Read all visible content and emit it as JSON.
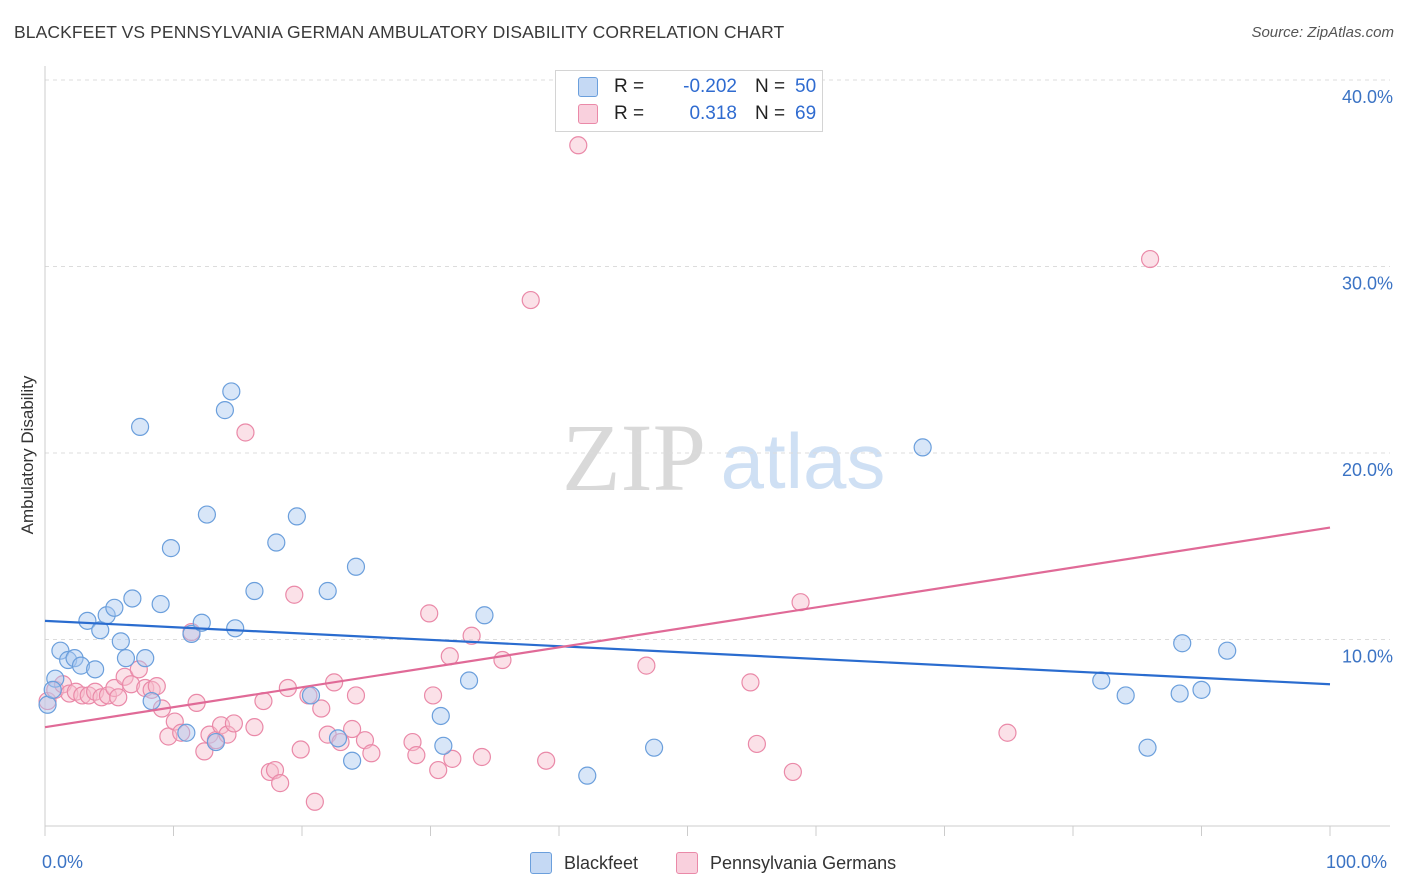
{
  "title": "BLACKFEET VS PENNSYLVANIA GERMAN AMBULATORY DISABILITY CORRELATION CHART",
  "source": "Source: ZipAtlas.com",
  "watermark": {
    "zip": "ZIP",
    "atlas": "atlas"
  },
  "colors": {
    "blue_fill": "#a9c8f0",
    "blue_stroke": "#6b9fdc",
    "blue_line": "#2a6ccf",
    "pink_fill": "#f6bccd",
    "pink_stroke": "#ea89a8",
    "pink_line": "#e06a97",
    "axis_label": "#3b73c4"
  },
  "legend": {
    "r_label": "R =",
    "n_label": "N =",
    "blue": {
      "r": "-0.202",
      "n": "50"
    },
    "pink": {
      "r": "0.318",
      "n": "69"
    }
  },
  "chart_data": {
    "type": "scatter",
    "ylabel": "Ambulatory Disability",
    "xlim": [
      0,
      100
    ],
    "ylim": [
      0,
      40
    ],
    "x_tick_labels": [
      "0.0%",
      "100.0%"
    ],
    "y_tick_labels": [
      "10.0%",
      "20.0%",
      "30.0%",
      "40.0%"
    ],
    "y_ticks": [
      10,
      20,
      30,
      40
    ],
    "grid": true,
    "legend_position": "top-center",
    "series": [
      {
        "name": "Blackfeet",
        "color": "blue",
        "trend": [
          [
            0,
            11.0
          ],
          [
            100,
            7.6
          ]
        ],
        "points": [
          [
            0.2,
            6.5
          ],
          [
            0.8,
            7.9
          ],
          [
            1.2,
            9.4
          ],
          [
            1.8,
            8.9
          ],
          [
            2.3,
            9.0
          ],
          [
            2.8,
            8.6
          ],
          [
            3.3,
            11.0
          ],
          [
            3.9,
            8.4
          ],
          [
            4.3,
            10.5
          ],
          [
            4.8,
            11.3
          ],
          [
            5.4,
            11.7
          ],
          [
            5.9,
            9.9
          ],
          [
            6.3,
            9.0
          ],
          [
            6.8,
            12.2
          ],
          [
            7.4,
            21.4
          ],
          [
            7.8,
            9.0
          ],
          [
            8.3,
            6.7
          ],
          [
            9.0,
            11.9
          ],
          [
            9.8,
            14.9
          ],
          [
            11.0,
            5.0
          ],
          [
            11.4,
            10.3
          ],
          [
            12.2,
            10.9
          ],
          [
            12.6,
            16.7
          ],
          [
            13.3,
            4.5
          ],
          [
            14.0,
            22.3
          ],
          [
            14.5,
            23.3
          ],
          [
            14.8,
            10.6
          ],
          [
            16.3,
            12.6
          ],
          [
            18.0,
            15.2
          ],
          [
            19.6,
            16.6
          ],
          [
            20.7,
            7.0
          ],
          [
            22.0,
            12.6
          ],
          [
            22.8,
            4.7
          ],
          [
            23.9,
            3.5
          ],
          [
            24.2,
            13.9
          ],
          [
            30.8,
            5.9
          ],
          [
            31.0,
            4.3
          ],
          [
            33.0,
            7.8
          ],
          [
            34.2,
            11.3
          ],
          [
            42.2,
            2.7
          ],
          [
            47.4,
            4.2
          ],
          [
            68.3,
            20.3
          ],
          [
            82.2,
            7.8
          ],
          [
            84.1,
            7.0
          ],
          [
            85.8,
            4.2
          ],
          [
            88.3,
            7.1
          ],
          [
            88.5,
            9.8
          ],
          [
            90.0,
            7.3
          ],
          [
            92.0,
            9.4
          ],
          [
            0.6,
            7.3
          ]
        ]
      },
      {
        "name": "Pennsylvania Germans",
        "color": "pink",
        "trend": [
          [
            0,
            5.3
          ],
          [
            100,
            16.0
          ]
        ],
        "points": [
          [
            0.2,
            6.7
          ],
          [
            0.8,
            7.3
          ],
          [
            1.4,
            7.6
          ],
          [
            1.9,
            7.1
          ],
          [
            2.4,
            7.2
          ],
          [
            2.9,
            7.0
          ],
          [
            3.4,
            7.0
          ],
          [
            3.9,
            7.2
          ],
          [
            4.4,
            6.9
          ],
          [
            4.9,
            7.0
          ],
          [
            5.4,
            7.4
          ],
          [
            5.7,
            6.9
          ],
          [
            6.2,
            8.0
          ],
          [
            6.7,
            7.6
          ],
          [
            7.3,
            8.4
          ],
          [
            7.8,
            7.4
          ],
          [
            8.3,
            7.3
          ],
          [
            8.7,
            7.5
          ],
          [
            9.1,
            6.3
          ],
          [
            9.6,
            4.8
          ],
          [
            10.1,
            5.6
          ],
          [
            10.6,
            5.0
          ],
          [
            11.4,
            10.4
          ],
          [
            11.8,
            6.6
          ],
          [
            12.4,
            4.0
          ],
          [
            12.8,
            4.9
          ],
          [
            13.3,
            4.6
          ],
          [
            13.7,
            5.4
          ],
          [
            14.2,
            4.9
          ],
          [
            14.7,
            5.5
          ],
          [
            15.6,
            21.1
          ],
          [
            16.3,
            5.3
          ],
          [
            17.0,
            6.7
          ],
          [
            17.5,
            2.9
          ],
          [
            17.9,
            3.0
          ],
          [
            18.3,
            2.3
          ],
          [
            18.9,
            7.4
          ],
          [
            19.4,
            12.4
          ],
          [
            19.9,
            4.1
          ],
          [
            20.5,
            7.0
          ],
          [
            21.0,
            1.3
          ],
          [
            21.5,
            6.3
          ],
          [
            22.0,
            4.9
          ],
          [
            22.5,
            7.7
          ],
          [
            23.0,
            4.5
          ],
          [
            23.9,
            5.2
          ],
          [
            24.2,
            7.0
          ],
          [
            24.9,
            4.6
          ],
          [
            25.4,
            3.9
          ],
          [
            28.6,
            4.5
          ],
          [
            28.9,
            3.8
          ],
          [
            29.9,
            11.4
          ],
          [
            30.6,
            3.0
          ],
          [
            30.2,
            7.0
          ],
          [
            31.5,
            9.1
          ],
          [
            31.7,
            3.6
          ],
          [
            33.2,
            10.2
          ],
          [
            34.0,
            3.7
          ],
          [
            35.6,
            8.9
          ],
          [
            37.8,
            28.2
          ],
          [
            39.0,
            3.5
          ],
          [
            41.5,
            36.5
          ],
          [
            46.8,
            8.6
          ],
          [
            54.9,
            7.7
          ],
          [
            55.4,
            4.4
          ],
          [
            58.2,
            2.9
          ],
          [
            58.8,
            12.0
          ],
          [
            74.9,
            5.0
          ],
          [
            86.0,
            30.4
          ]
        ]
      }
    ]
  }
}
